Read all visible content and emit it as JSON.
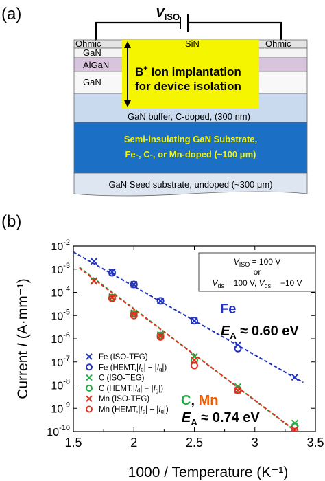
{
  "panel_a": {
    "label": "(a)",
    "voltage_label": {
      "base": "V",
      "sub": "ISO"
    },
    "layers": {
      "ohmic_left": "Ohmic",
      "ohmic_right": "Ohmic",
      "sin": "SiN",
      "gan_cap": "GaN",
      "algan": "AlGaN",
      "gan_channel": "GaN",
      "buffer": "GaN buffer, C-doped, (300 nm)",
      "substrate_line1": "Semi-insulating GaN Substrate,",
      "substrate_line2": "Fe-, C-, or Mn-doped (~100 μm)",
      "seed": "GaN Seed substrate, undoped (~300 μm)"
    },
    "implant_line1": {
      "base": "B",
      "sup": "+",
      "rest": " Ion implantation"
    },
    "implant_line2": "for device isolation",
    "colors": {
      "implant": "#f5f500",
      "sin": "#8dc63f",
      "algan": "#d9c4de",
      "buffer": "#c9d9ee",
      "substrate": "#1b6fc4",
      "substrate_text": "#f5f500",
      "seed": "#dde6f1",
      "ohmic": "#e4e4e4"
    }
  },
  "panel_b": {
    "label": "(b)",
    "chart_data": {
      "type": "scatter",
      "xlabel": "1000 / Temperature (K⁻¹)",
      "ylabel": "Current I (A·mm⁻¹)",
      "xlim": [
        1.5,
        3.5
      ],
      "ylim_log10": [
        -10,
        -2
      ],
      "xticks": [
        "1.5",
        "2",
        "2.5",
        "3",
        "3.5"
      ],
      "yticks": [
        {
          "base": "10",
          "exp": "-2"
        },
        {
          "base": "10",
          "exp": "-3"
        },
        {
          "base": "10",
          "exp": "-4"
        },
        {
          "base": "10",
          "exp": "-5"
        },
        {
          "base": "10",
          "exp": "-6"
        },
        {
          "base": "10",
          "exp": "-7"
        },
        {
          "base": "10",
          "exp": "-8"
        },
        {
          "base": "10",
          "exp": "-9"
        },
        {
          "base": "10",
          "exp": "-10"
        }
      ],
      "series": [
        {
          "name": "Fe (ISO-TEG)",
          "marker": "x",
          "color": "#2233bb",
          "x": [
            1.67,
            1.82,
            2.0,
            2.22,
            2.5,
            2.86,
            3.33
          ],
          "y": [
            0.0022,
            0.00075,
            0.00022,
            4.3e-05,
            6e-06,
            5.5e-07,
            2.2e-08
          ]
        },
        {
          "name": "Fe (HEMT, |Id| − |Ig|)",
          "marker": "o",
          "color": "#2233bb",
          "x": [
            1.82,
            2.0,
            2.22,
            2.5,
            2.86
          ],
          "y": [
            0.0007,
            0.00022,
            4.3e-05,
            6e-06,
            3.8e-07
          ]
        },
        {
          "name": "C (ISO-TEG)",
          "marker": "x",
          "color": "#22aa44",
          "x": [
            1.67,
            1.82,
            2.0,
            2.22,
            2.5,
            2.86,
            3.33
          ],
          "y": [
            0.00032,
            6.5e-05,
            1.3e-05,
            1.5e-06,
            1.7e-07,
            8.5e-09,
            2.3e-10
          ]
        },
        {
          "name": "C (HEMT, |Id| − |Ig|)",
          "marker": "o",
          "color": "#22aa44",
          "x": [
            1.82,
            2.0,
            2.22,
            2.5,
            2.86,
            3.33
          ],
          "y": [
            6e-05,
            1.2e-05,
            1.4e-06,
            1.2e-07,
            6.5e-09,
            1.7e-10
          ]
        },
        {
          "name": "Mn (ISO-TEG)",
          "marker": "x",
          "color": "#e03020",
          "x": [
            1.67,
            1.82,
            2.0,
            2.22,
            2.5,
            2.86,
            3.33
          ],
          "y": [
            0.0003,
            6e-05,
            1.1e-05,
            1.3e-06,
            1.2e-07,
            6e-09,
            1.2e-10
          ]
        },
        {
          "name": "Mn (HEMT, |Id| − |Ig|)",
          "marker": "o",
          "color": "#e03020",
          "x": [
            1.82,
            2.0,
            2.22,
            2.5,
            2.86,
            3.33
          ],
          "y": [
            5.5e-05,
            1e-05,
            1.2e-06,
            7e-08,
            6e-09,
            1e-10
          ]
        }
      ],
      "fits": [
        {
          "color": "#2233bb",
          "x": [
            1.5,
            3.4
          ],
          "y": [
            0.0055,
            1.3e-08
          ]
        },
        {
          "color": "#22aa44",
          "x": [
            1.55,
            3.45
          ],
          "y": [
            0.0012,
            3.6e-11
          ]
        },
        {
          "color": "#e03020",
          "x": [
            1.55,
            3.4
          ],
          "y": [
            0.0011,
            6e-11
          ]
        }
      ],
      "legend": {
        "placement": "bottom-left",
        "entries": [
          {
            "marker": "x",
            "color": "#2233bb",
            "name": "Fe",
            "suffix": " (ISO-TEG)"
          },
          {
            "marker": "o",
            "color": "#2233bb",
            "name": "Fe",
            "suffix": " (HEMT,|",
            "hemt": true
          },
          {
            "marker": "x",
            "color": "#22aa44",
            "name": "C",
            "suffix": " (ISO-TEG)"
          },
          {
            "marker": "o",
            "color": "#22aa44",
            "name": "C",
            "suffix": " (HEMT,|",
            "hemt": true
          },
          {
            "marker": "x",
            "color": "#e03020",
            "name": "Mn",
            "suffix": " (ISO-TEG)"
          },
          {
            "marker": "o",
            "color": "#e03020",
            "name": "Mn",
            "suffix": " (HEMT,|",
            "hemt": true
          }
        ]
      },
      "condition_box": {
        "line1": {
          "v": "V",
          "sub": "ISO",
          "rest": " = 100 V"
        },
        "line2": "or",
        "line3": {
          "v1": "V",
          "sub1": "ds",
          "mid": " = 100 V, ",
          "v2": "V",
          "sub2": "gs",
          "rest": " = −10 V"
        }
      },
      "annotations": {
        "fe_label": "Fe",
        "fe_energy": {
          "e": "E",
          "sub": "A",
          "rest": " ≈ 0.60 eV"
        },
        "c_label": "C",
        "comma": ", ",
        "mn_label": "Mn",
        "cmn_energy": {
          "e": "E",
          "sub": "A",
          "rest": " ≈ 0.74 eV"
        }
      }
    }
  }
}
